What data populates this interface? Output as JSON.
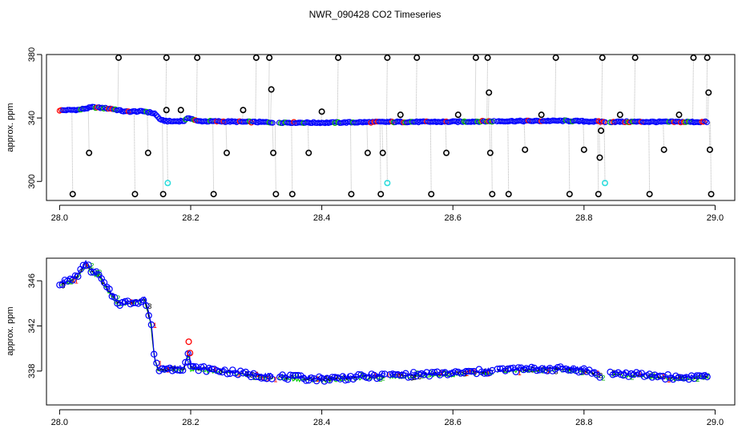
{
  "title": "NWR_090428  CO2 Timeseries",
  "colors": {
    "raw_line": "#b5b5b5",
    "outlier": "#000000",
    "flag_cyan": "#33dddd",
    "marker_blue": "#0000ff",
    "marker_red": "#ff0000",
    "marker_green": "#00b000",
    "line_blue": "#0000ff",
    "line_black": "#000000",
    "line_green": "#00cc00"
  },
  "chart_data": [
    {
      "type": "scatter",
      "ylabel": "approx. ppm",
      "xlabel": "",
      "xlim": [
        27.98,
        29.03
      ],
      "ylim": [
        288,
        380
      ],
      "xticks": [
        28.0,
        28.2,
        28.4,
        28.6,
        28.8,
        29.0
      ],
      "xtick_labels": [
        "28.0",
        "28.2",
        "28.4",
        "28.6",
        "28.8",
        "29.0"
      ],
      "yticks": [
        300,
        340,
        380
      ],
      "ytick_labels": [
        "300",
        "340",
        "380"
      ],
      "grid": false,
      "gaps": [
        [
          28.327,
          28.333
        ],
        [
          28.663,
          28.667
        ],
        [
          28.835,
          28.84
        ]
      ],
      "baseline": [
        [
          28.0,
          344.8
        ],
        [
          28.03,
          345.2
        ],
        [
          28.05,
          346.8
        ],
        [
          28.08,
          345.8
        ],
        [
          28.1,
          344.0
        ],
        [
          28.13,
          344.2
        ],
        [
          28.145,
          342.8
        ],
        [
          28.155,
          338.5
        ],
        [
          28.17,
          337.8
        ],
        [
          28.19,
          338.2
        ],
        [
          28.198,
          340.2
        ],
        [
          28.21,
          338.0
        ],
        [
          28.25,
          337.8
        ],
        [
          28.33,
          337.2
        ],
        [
          28.4,
          337.0
        ],
        [
          28.5,
          337.5
        ],
        [
          28.6,
          337.6
        ],
        [
          28.67,
          338.0
        ],
        [
          28.77,
          338.2
        ],
        [
          28.83,
          337.6
        ],
        [
          28.88,
          337.6
        ],
        [
          28.95,
          337.5
        ],
        [
          28.99,
          337.5
        ]
      ],
      "outliers_black": [
        [
          28.02,
          292
        ],
        [
          28.045,
          318
        ],
        [
          28.09,
          378
        ],
        [
          28.115,
          292
        ],
        [
          28.135,
          318
        ],
        [
          28.158,
          292
        ],
        [
          28.163,
          345
        ],
        [
          28.163,
          378
        ],
        [
          28.185,
          345
        ],
        [
          28.21,
          378
        ],
        [
          28.235,
          292
        ],
        [
          28.255,
          318
        ],
        [
          28.28,
          345
        ],
        [
          28.3,
          378
        ],
        [
          28.32,
          378
        ],
        [
          28.323,
          358
        ],
        [
          28.326,
          318
        ],
        [
          28.33,
          292
        ],
        [
          28.355,
          292
        ],
        [
          28.38,
          318
        ],
        [
          28.4,
          344
        ],
        [
          28.425,
          378
        ],
        [
          28.445,
          292
        ],
        [
          28.47,
          318
        ],
        [
          28.493,
          318
        ],
        [
          28.49,
          292
        ],
        [
          28.5,
          378
        ],
        [
          28.52,
          342
        ],
        [
          28.545,
          378
        ],
        [
          28.567,
          292
        ],
        [
          28.59,
          318
        ],
        [
          28.608,
          342
        ],
        [
          28.635,
          378
        ],
        [
          28.653,
          378
        ],
        [
          28.655,
          356
        ],
        [
          28.657,
          318
        ],
        [
          28.66,
          292
        ],
        [
          28.685,
          292
        ],
        [
          28.71,
          320
        ],
        [
          28.735,
          342
        ],
        [
          28.757,
          378
        ],
        [
          28.778,
          292
        ],
        [
          28.8,
          320
        ],
        [
          28.822,
          292
        ],
        [
          28.824,
          315
        ],
        [
          28.826,
          332
        ],
        [
          28.828,
          378
        ],
        [
          28.855,
          342
        ],
        [
          28.878,
          378
        ],
        [
          28.9,
          292
        ],
        [
          28.922,
          320
        ],
        [
          28.945,
          342
        ],
        [
          28.967,
          378
        ],
        [
          28.988,
          378
        ],
        [
          28.99,
          356
        ],
        [
          28.992,
          320
        ],
        [
          28.994,
          292
        ]
      ],
      "outliers_cyan": [
        [
          28.165,
          299
        ],
        [
          28.5,
          299
        ],
        [
          28.832,
          299
        ]
      ]
    },
    {
      "type": "line",
      "ylabel": "approx. ppm",
      "xlabel": "",
      "xlim": [
        27.98,
        29.03
      ],
      "ylim": [
        335.0,
        348.0
      ],
      "xticks": [
        28.0,
        28.2,
        28.4,
        28.6,
        28.8,
        29.0
      ],
      "xtick_labels": [
        "28.0",
        "28.2",
        "28.4",
        "28.6",
        "28.8",
        "29.0"
      ],
      "yticks": [
        338,
        342,
        346
      ],
      "ytick_labels": [
        "338",
        "342",
        "346"
      ],
      "grid": false,
      "gaps": [
        [
          28.327,
          28.333
        ],
        [
          28.497,
          28.502
        ],
        [
          28.663,
          28.667
        ],
        [
          28.825,
          28.84
        ]
      ],
      "series_profile": [
        [
          28.0,
          345.8
        ],
        [
          28.01,
          345.9
        ],
        [
          28.02,
          346.1
        ],
        [
          28.03,
          346.7
        ],
        [
          28.04,
          347.5
        ],
        [
          28.05,
          346.8
        ],
        [
          28.06,
          346.5
        ],
        [
          28.07,
          345.5
        ],
        [
          28.09,
          344.0
        ],
        [
          28.11,
          344.1
        ],
        [
          28.13,
          344.3
        ],
        [
          28.14,
          342.0
        ],
        [
          28.145,
          339.0
        ],
        [
          28.15,
          338.2
        ],
        [
          28.17,
          338.2
        ],
        [
          28.19,
          338.3
        ],
        [
          28.197,
          339.8
        ],
        [
          28.2,
          338.3
        ],
        [
          28.22,
          338.2
        ],
        [
          28.25,
          338.0
        ],
        [
          28.3,
          337.6
        ],
        [
          28.33,
          337.5
        ],
        [
          28.4,
          337.3
        ],
        [
          28.5,
          337.6
        ],
        [
          28.6,
          337.8
        ],
        [
          28.66,
          338.0
        ],
        [
          28.67,
          338.1
        ],
        [
          28.75,
          338.2
        ],
        [
          28.8,
          338.1
        ],
        [
          28.825,
          337.6
        ],
        [
          28.84,
          337.8
        ],
        [
          28.9,
          337.6
        ],
        [
          28.95,
          337.4
        ],
        [
          28.99,
          337.6
        ]
      ]
    }
  ]
}
